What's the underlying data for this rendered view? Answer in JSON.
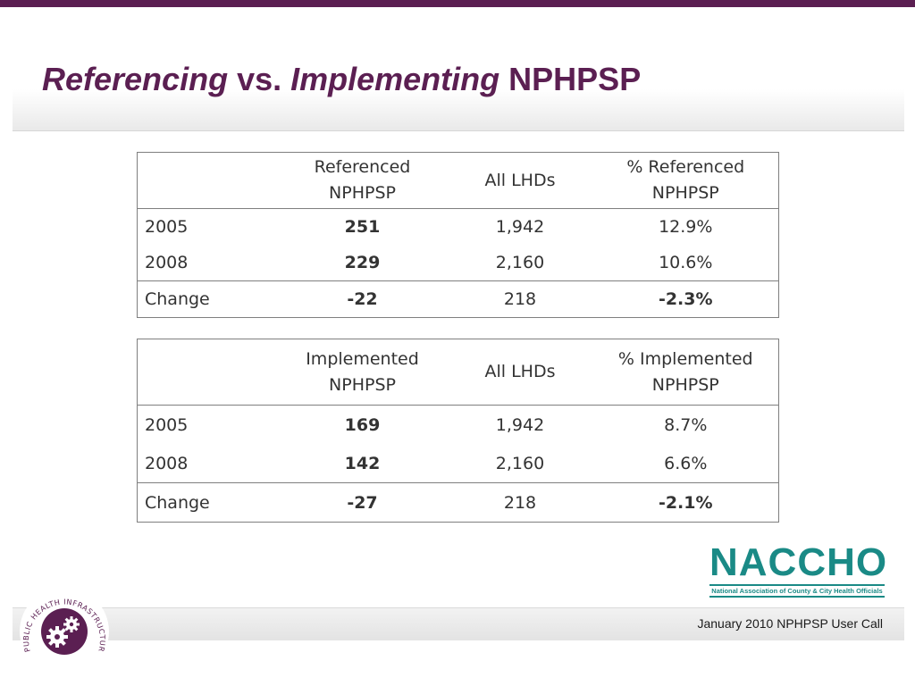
{
  "title": {
    "part1": "Referencing",
    "part2": " vs. ",
    "part3": "Implementing",
    "part4": " NPHPSP"
  },
  "table_referenced": {
    "headers": [
      "",
      "Referenced NPHPSP",
      "All LHDs",
      "% Referenced NPHPSP"
    ],
    "rows": [
      {
        "label": "2005",
        "count": "251",
        "all": "1,942",
        "pct": "12.9%"
      },
      {
        "label": "2008",
        "count": "229",
        "all": "2,160",
        "pct": "10.6%"
      },
      {
        "label": "Change",
        "count": "-22",
        "all": "218",
        "pct": "-2.3%"
      }
    ]
  },
  "table_implemented": {
    "headers": [
      "",
      "Implemented NPHPSP",
      "All LHDs",
      "% Implemented NPHPSP"
    ],
    "rows": [
      {
        "label": "2005",
        "count": "169",
        "all": "1,942",
        "pct": "8.7%"
      },
      {
        "label": "2008",
        "count": "142",
        "all": "2,160",
        "pct": "6.6%"
      },
      {
        "label": "Change",
        "count": "-27",
        "all": "218",
        "pct": "-2.1%"
      }
    ]
  },
  "logo": {
    "name": "NACCHO",
    "subtitle": "National Association of County & City Health Officials"
  },
  "seal": {
    "text": "PUBLIC HEALTH INFRASTRUCTURE & SYSTEMS"
  },
  "footer": {
    "text": "January 2010 NPHPSP User Call"
  },
  "colors": {
    "accent": "#5b1f52",
    "logo": "#1a8a86"
  }
}
